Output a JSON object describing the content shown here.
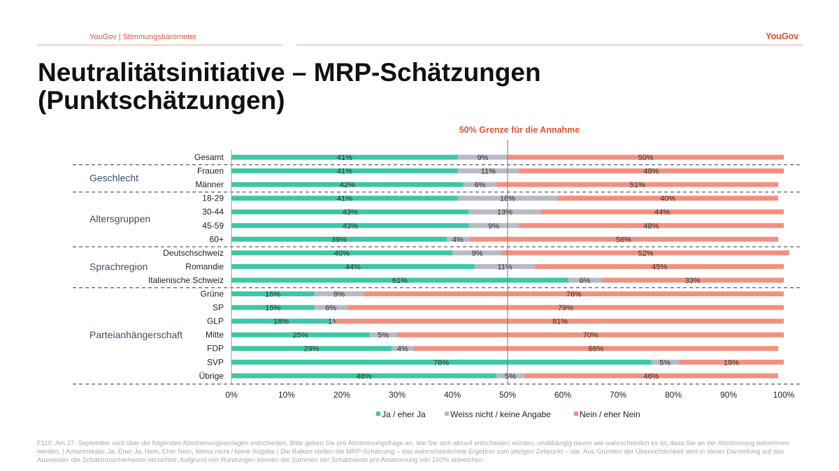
{
  "header": {
    "brand_text": "YouGov | Stimmungsbarometer",
    "logo_text": "YouGov",
    "accent_color": "#e0533a"
  },
  "title": "Neutralitätsinitiative – MRP-Schätzungen (Punktschätzungen)",
  "chart_data": {
    "type": "bar",
    "orientation": "horizontal",
    "stacked": true,
    "annotation": "50% Grenze für die Annahme",
    "categories": [
      "Gesamt",
      "Frauen",
      "Männer",
      "18-29",
      "30-44",
      "45-59",
      "60+",
      "Deutschschweiz",
      "Romandie",
      "Italienische Schweiz",
      "Grüne",
      "SP",
      "GLP",
      "Mitte",
      "FDP",
      "SVP",
      "Übrige"
    ],
    "groups": [
      {
        "label": "Geschlecht",
        "categories": [
          "Frauen",
          "Männer"
        ]
      },
      {
        "label": "Altersgruppen",
        "categories": [
          "18-29",
          "30-44",
          "45-59",
          "60+"
        ]
      },
      {
        "label": "Sprachregion",
        "categories": [
          "Deutschschweiz",
          "Romandie",
          "Italienische Schweiz"
        ]
      },
      {
        "label": "Parteianhängerschaft",
        "categories": [
          "Grüne",
          "SP",
          "GLP",
          "Mitte",
          "FDP",
          "SVP",
          "Übrige"
        ]
      }
    ],
    "series": [
      {
        "name": "Ja / eher Ja",
        "color": "#3cc7a5",
        "values": [
          41,
          41,
          42,
          41,
          43,
          43,
          39,
          40,
          44,
          61,
          15,
          15,
          18,
          25,
          29,
          76,
          48
        ]
      },
      {
        "name": "Weiss nicht / keine Angabe",
        "color": "#b7b9c5",
        "values": [
          9,
          11,
          6,
          18,
          13,
          9,
          4,
          9,
          11,
          6,
          9,
          6,
          1,
          5,
          4,
          5,
          5
        ]
      },
      {
        "name": "Nein / eher Nein",
        "color": "#f2907f",
        "values": [
          50,
          48,
          51,
          40,
          44,
          48,
          56,
          52,
          45,
          33,
          76,
          79,
          81,
          70,
          66,
          19,
          46
        ]
      }
    ],
    "xlim": [
      0,
      100
    ],
    "xticks": [
      0,
      10,
      20,
      30,
      40,
      50,
      60,
      70,
      80,
      90,
      100
    ],
    "xtick_suffix": "%",
    "threshold": 50,
    "legend_position": "bottom"
  },
  "footnote": "F110: Am 27. September wird über die folgenden Abstimmungsvorlagen entschieden. Bitte geben Sie pro Abstimmungsfrage an, wie Sie sich aktuell entscheiden würden, unabhängig davon wie wahrscheinlich es ist, dass Sie an der Abstimmung teilnehmen werden. | Antwortskala: Ja, Eher Ja, Nein, Eher Nein, Weiss nicht / keine Angabe | Die Balken stellen die MRP-Schätzung – das wahrscheinlichste Ergebnis zum jetzigen Zeitpunkt – dar. Aus Gründen der Übersichtlichkeit wird in dieser Darstellung auf das Ausweisen der Schätzunsicherheiten verzichtet. Aufgrund von Rundungen können die Summen der Schätzwerte pro Abstimmung von 100% abweichen."
}
